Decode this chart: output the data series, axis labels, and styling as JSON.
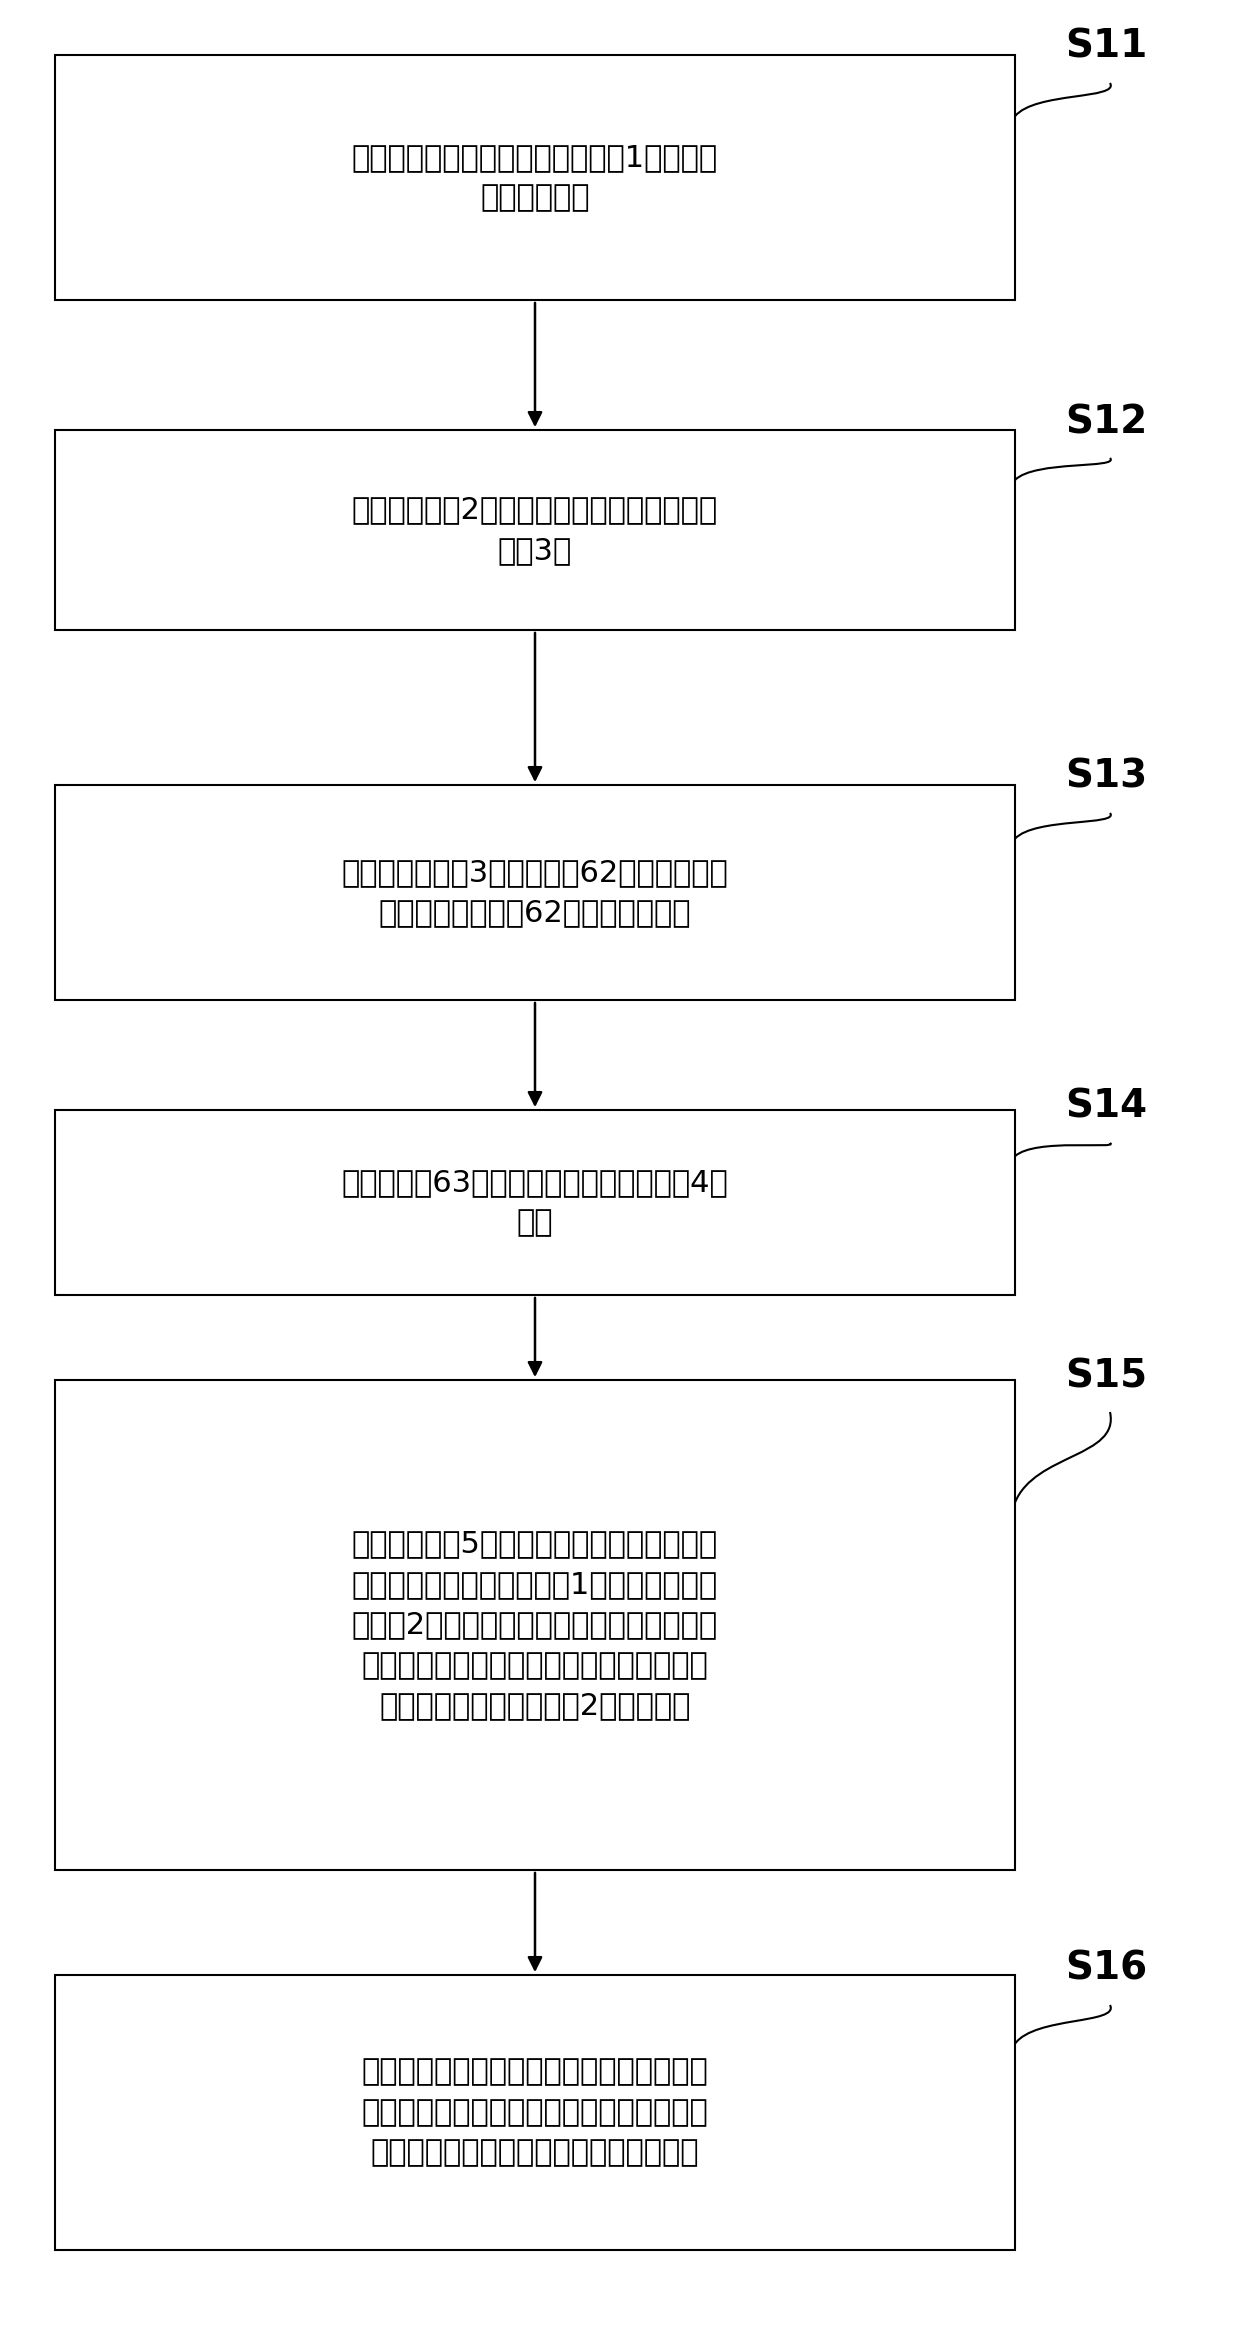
{
  "bg_color": "#ffffff",
  "box_color": "#ffffff",
  "box_edge_color": "#000000",
  "text_color": "#000000",
  "arrow_color": "#000000",
  "label_color": "#000000",
  "steps": [
    {
      "label": "S11",
      "text": "选择测试频率点，设置信号发生器1输出交流\n信号激励电平",
      "lines": 2
    },
    {
      "label": "S12",
      "text": "通过放大模块2放大干扰信号，注入到感性耦\n合钳3中",
      "lines": 2
    },
    {
      "label": "S13",
      "text": "经过感性耦合钳3与传输探针62之间的磁感应\n耦合，在传输探针62上产生感应电流",
      "lines": 2
    },
    {
      "label": "S14",
      "text": "使用短路帽63连接形成回路，在匹配模块4处\n消耗",
      "lines": 2
    },
    {
      "label": "S15",
      "text": "记录测量模块5上采集到的测量值，用欧姆定\n律换算后，调节信号发生器1的输出，调节放\n大模块2的输出功率，以获得目标试验电平所\n需的前向功率，使干扰电流达到既定的测试\n等级要求，记录放大模块2的前向功率",
      "lines": 5
    },
    {
      "label": "S16",
      "text": "按照设定的频率步进，在起始频率的基础上\n进行迭代，设置其余校验频率点，重复上述\n测试过程，直至达到终止频率后停止输出",
      "lines": 3
    }
  ],
  "fig_width": 12.4,
  "fig_height": 23.38,
  "dpi": 100
}
